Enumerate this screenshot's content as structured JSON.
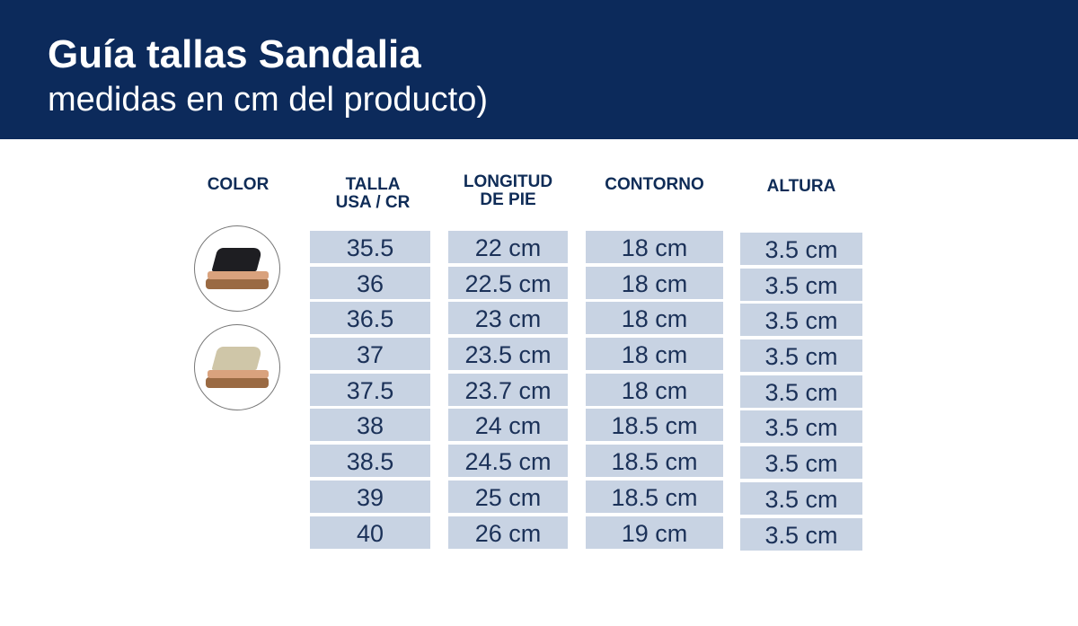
{
  "header": {
    "title": "Guía tallas Sandalia",
    "subtitle": "medidas en cm del producto)"
  },
  "columns": {
    "color": "COLOR",
    "talla": [
      "TALLA",
      "USA / CR"
    ],
    "longitud": [
      "LONGITUD",
      "DE PIE"
    ],
    "contorno": "CONTORNO",
    "altura": "ALTURA"
  },
  "colors": [
    {
      "name": "black-sandal",
      "strap": "#1e1e22"
    },
    {
      "name": "gold-sandal",
      "strap": "#cfc6a8"
    }
  ],
  "rows": {
    "talla": [
      "35.5",
      "36",
      "36.5",
      "37",
      "37.5",
      "38",
      "38.5",
      "39",
      "40"
    ],
    "longitud": [
      "22 cm",
      "22.5 cm",
      "23 cm",
      "23.5 cm",
      "23.7 cm",
      "24 cm",
      "24.5 cm",
      "25 cm",
      "26 cm"
    ],
    "contorno": [
      "18 cm",
      "18 cm",
      "18 cm",
      "18 cm",
      "18 cm",
      "18.5 cm",
      "18.5 cm",
      "18.5 cm",
      "19 cm"
    ],
    "altura": [
      "3.5 cm",
      "3.5 cm",
      "3.5 cm",
      "3.5 cm",
      "3.5 cm",
      "3.5 cm",
      "3.5 cm",
      "3.5 cm",
      "3.5 cm"
    ]
  }
}
